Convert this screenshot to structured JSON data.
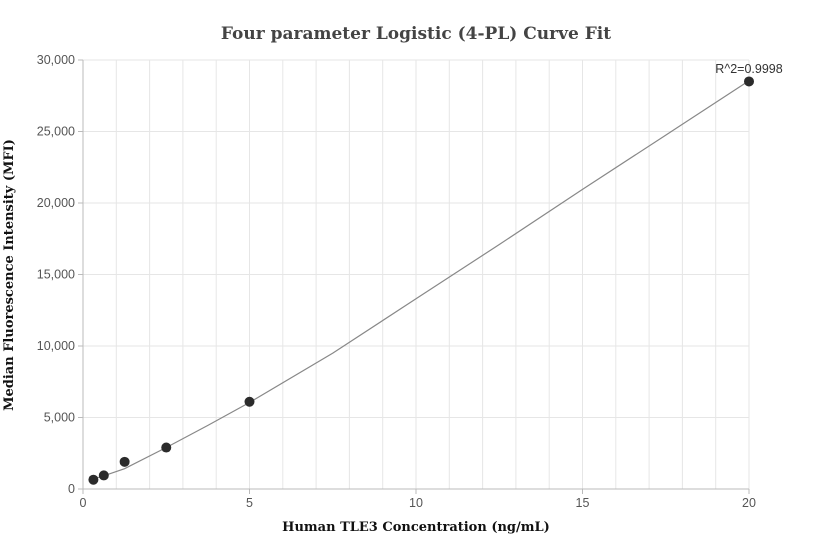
{
  "chart_data": {
    "type": "scatter",
    "title": "Four parameter Logistic (4-PL) Curve Fit",
    "xlabel": "Human TLE3 Concentration (ng/mL)",
    "ylabel": "Median Fluorescence Intensity (MFI)",
    "xlim": [
      0,
      20
    ],
    "ylim": [
      0,
      30000
    ],
    "x_ticks": [
      0,
      5,
      10,
      15,
      20
    ],
    "x_tick_labels": [
      "0",
      "5",
      "10",
      "15",
      "20"
    ],
    "y_ticks": [
      0,
      5000,
      10000,
      15000,
      20000,
      25000,
      30000
    ],
    "y_tick_labels": [
      "0",
      "5,000",
      "10,000",
      "15,000",
      "20,000",
      "25,000",
      "30,000"
    ],
    "grid": true,
    "points": [
      {
        "x": 0.3125,
        "y": 650
      },
      {
        "x": 0.625,
        "y": 950
      },
      {
        "x": 1.25,
        "y": 1900
      },
      {
        "x": 2.5,
        "y": 2900
      },
      {
        "x": 5,
        "y": 6100
      },
      {
        "x": 20,
        "y": 28500
      }
    ],
    "fit_curve": [
      {
        "x": 0.3125,
        "y": 700
      },
      {
        "x": 0.625,
        "y": 920
      },
      {
        "x": 1.25,
        "y": 1420
      },
      {
        "x": 2.5,
        "y": 2900
      },
      {
        "x": 3.75,
        "y": 4450
      },
      {
        "x": 5,
        "y": 6050
      },
      {
        "x": 7.5,
        "y": 9500
      },
      {
        "x": 10,
        "y": 13300
      },
      {
        "x": 12.5,
        "y": 17100
      },
      {
        "x": 15,
        "y": 20950
      },
      {
        "x": 17.5,
        "y": 24750
      },
      {
        "x": 20,
        "y": 28550
      }
    ],
    "annotation": "R^2=0.9998",
    "colors": {
      "point": "#2b2b2b",
      "curve": "#888888",
      "grid": "#e6e6e6",
      "axis": "#bbbbbb"
    }
  }
}
